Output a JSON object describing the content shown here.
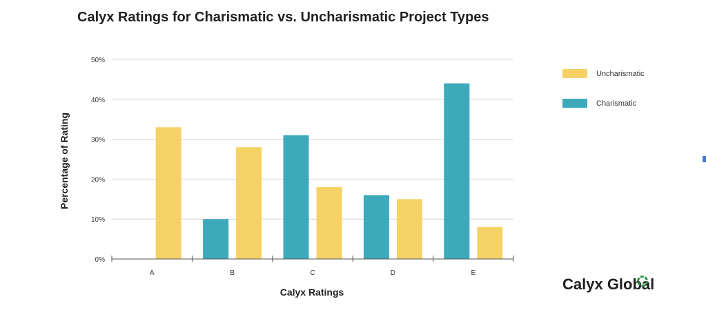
{
  "title": "Calyx Ratings for Charismatic vs. Uncharismatic Project Types",
  "brand": {
    "name": "Calyx Global",
    "icon": "ring-logo-icon"
  },
  "colors": {
    "uncharismatic": "#F6D266",
    "charismatic": "#3DAABB",
    "grid": "#d4d4d4",
    "axis": "#555555"
  },
  "chart_data": {
    "type": "bar",
    "title": "Calyx Ratings for Charismatic vs. Uncharismatic Project Types",
    "xlabel": "Calyx Ratings",
    "ylabel": "Percentage of Rating",
    "categories": [
      "A",
      "B",
      "C",
      "D",
      "E"
    ],
    "series": [
      {
        "name": "Charismatic",
        "values": [
          0,
          10,
          31,
          16,
          44
        ]
      },
      {
        "name": "Uncharismatic",
        "values": [
          33,
          28,
          18,
          15,
          8
        ]
      }
    ],
    "ylim": [
      0,
      50
    ],
    "yticks": [
      "0%",
      "10%",
      "20%",
      "30%",
      "40%",
      "50%"
    ],
    "legend": [
      "Uncharismatic",
      "Charismatic"
    ],
    "legend_position": "right",
    "grid": true
  }
}
